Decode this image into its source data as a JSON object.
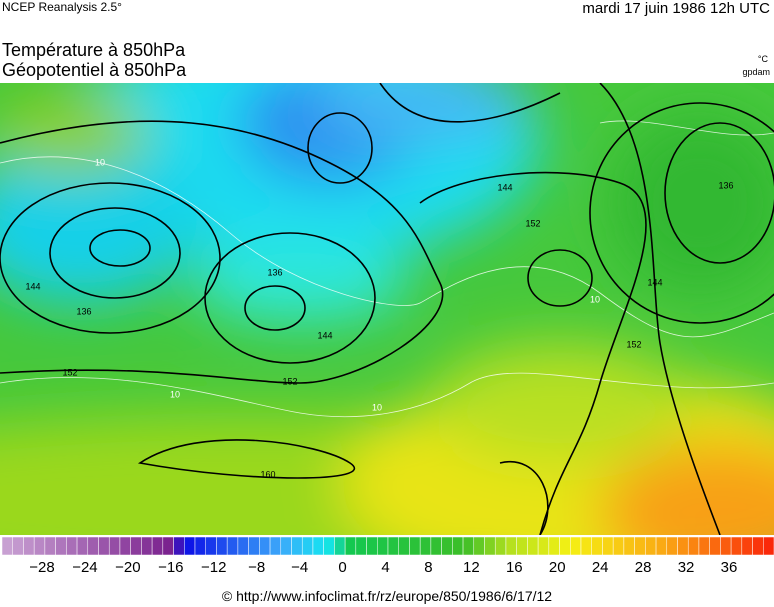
{
  "header": {
    "source": "NCEP Reanalysis 2.5°",
    "date": "mardi 17 juin 1986 12h UTC"
  },
  "titles": [
    "Température à 850hPa",
    "Géopotentiel à 850hPa"
  ],
  "units": [
    "°C",
    "gpdam"
  ],
  "map": {
    "contour_labels": [
      "144",
      "136",
      "152",
      "152",
      "144",
      "136",
      "144",
      "152",
      "136",
      "144",
      "152",
      "160",
      "10",
      "10",
      "10",
      "10"
    ]
  },
  "colorbar": {
    "ticks": [
      "−28",
      "−24",
      "−20",
      "−16",
      "−12",
      "−8",
      "−4",
      "0",
      "4",
      "8",
      "12",
      "16",
      "20",
      "24",
      "28",
      "32",
      "36"
    ]
  },
  "footer": "© http://www.infoclimat.fr/rz/europe/850/1986/6/17/12"
}
